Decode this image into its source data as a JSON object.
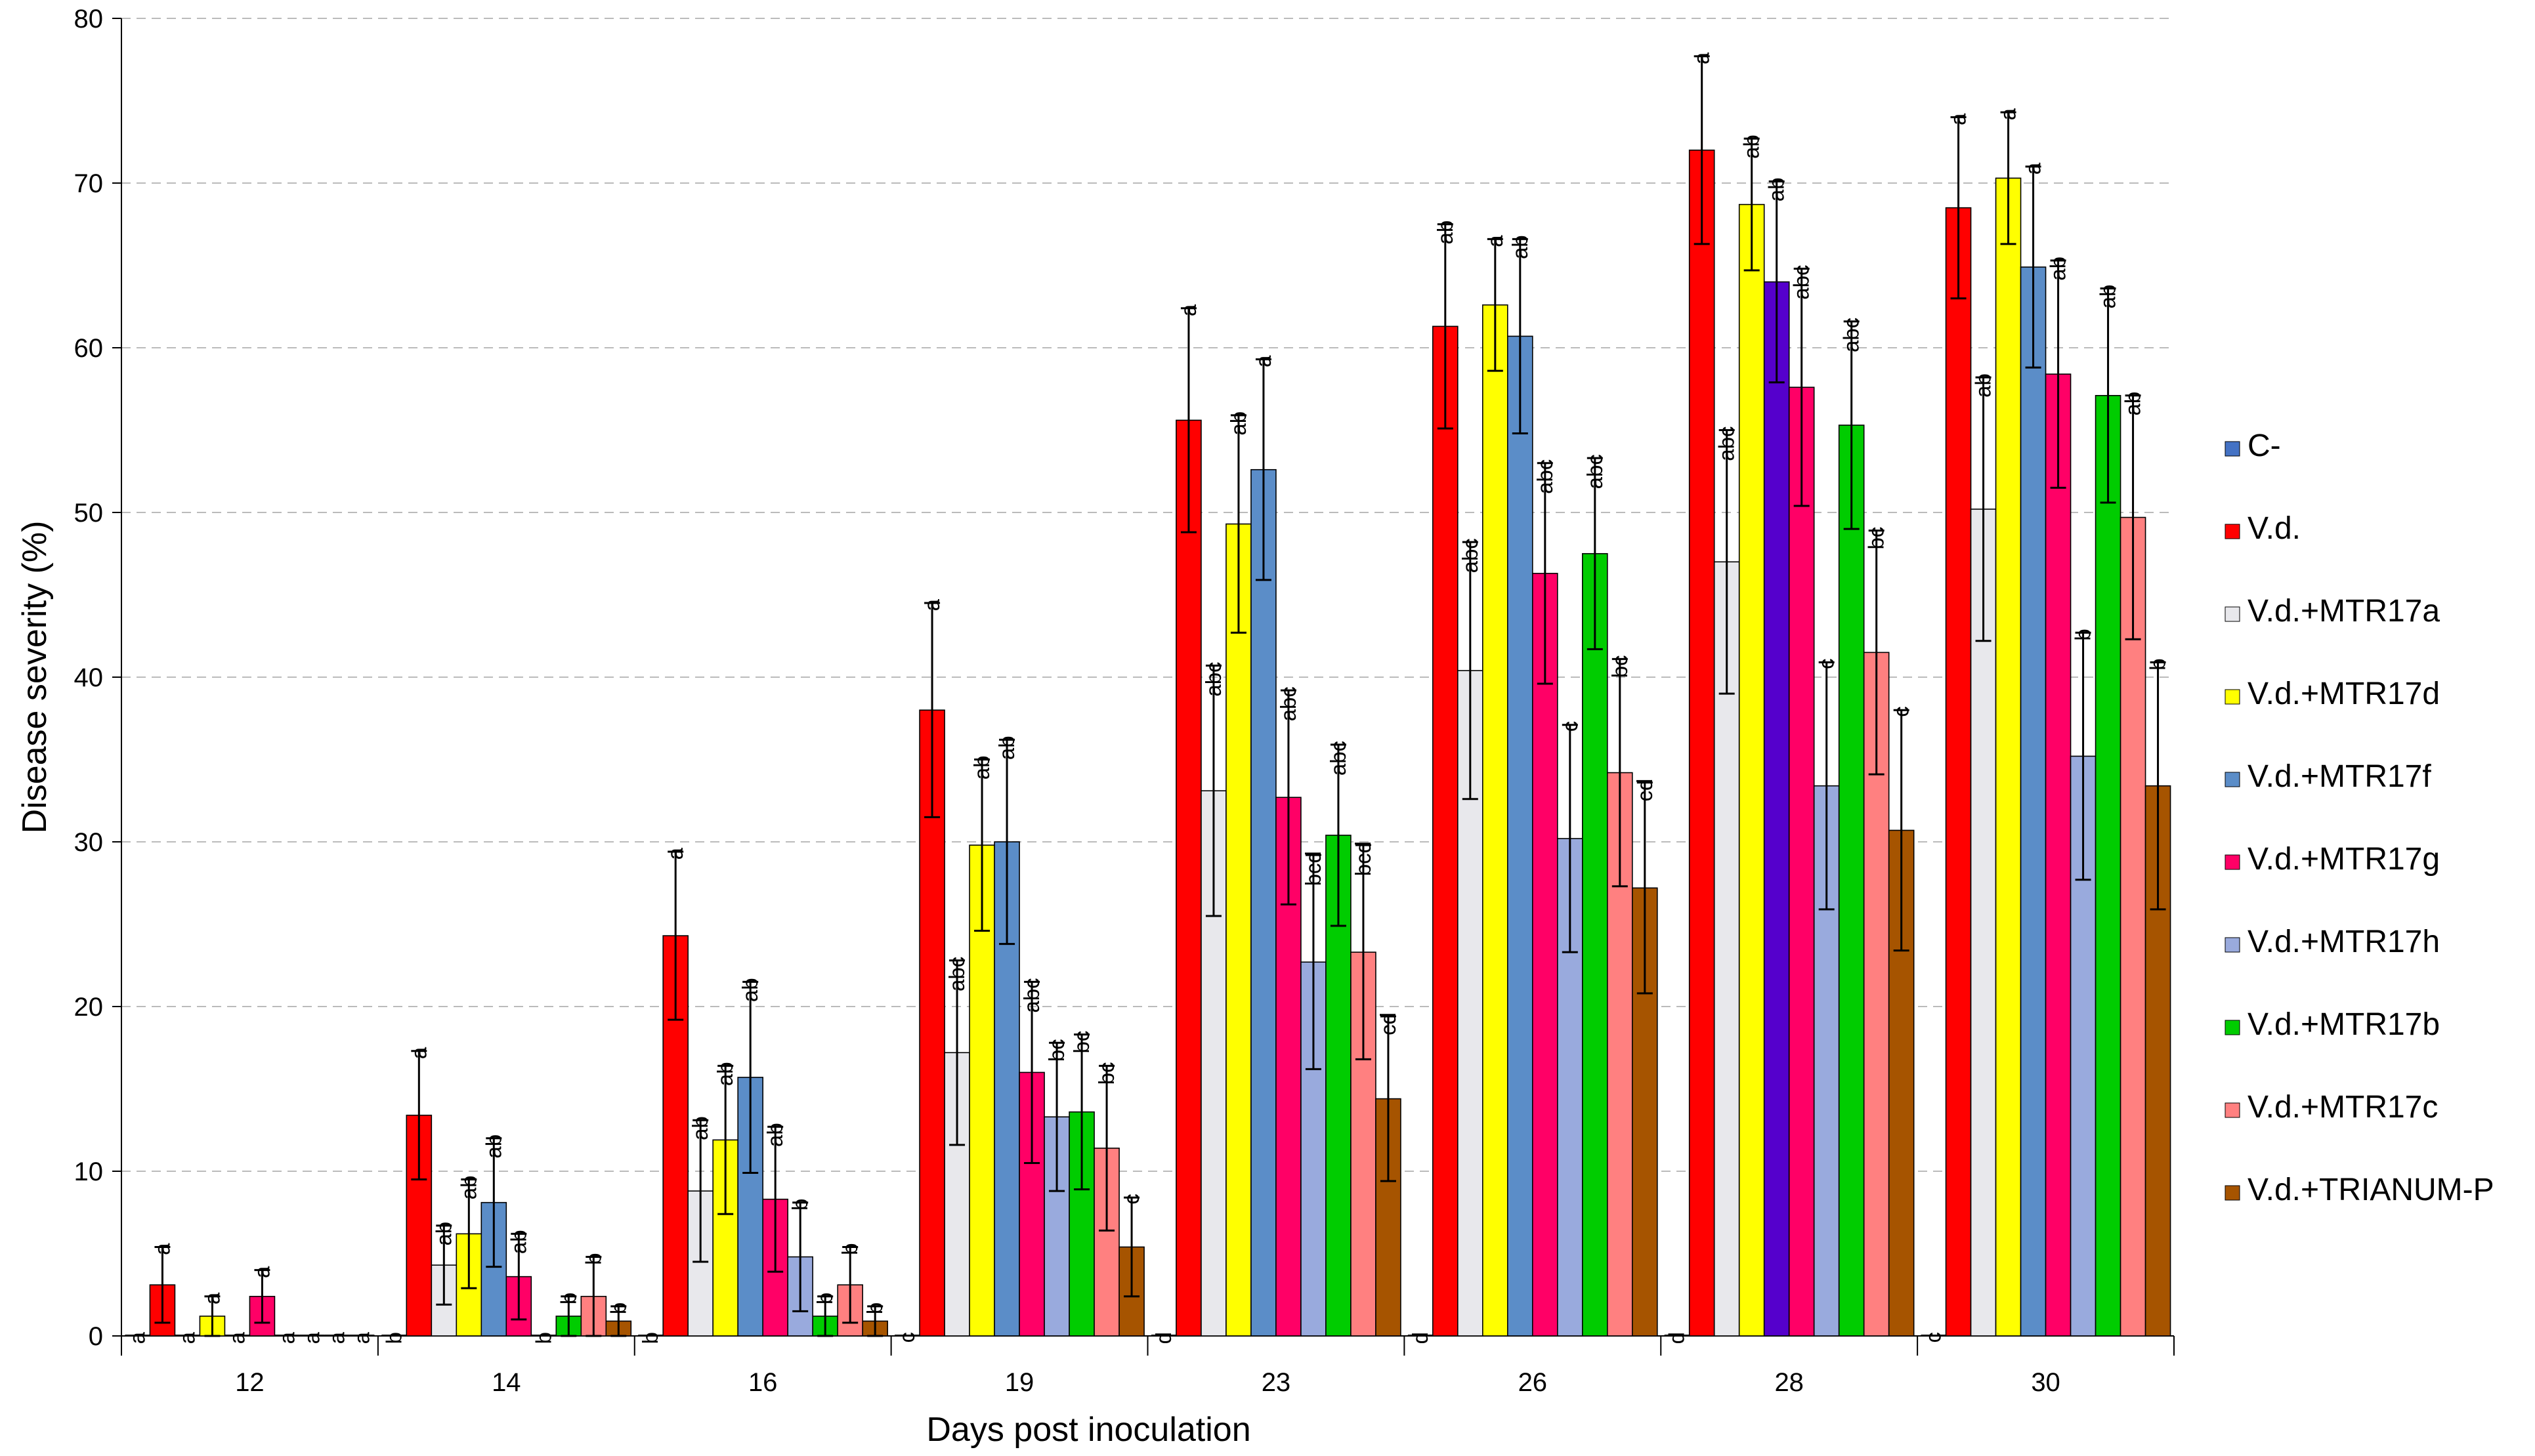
{
  "chart_data": {
    "type": "bar",
    "xlabel": "Days post inoculation",
    "ylabel": "Disease severity (%)",
    "ylim": [
      0,
      80
    ],
    "yticks": [
      0,
      10,
      20,
      30,
      40,
      50,
      60,
      70,
      80
    ],
    "grid": "horizontal dashed",
    "legend_position": "right",
    "categories": [
      "12",
      "14",
      "16",
      "19",
      "23",
      "26",
      "28",
      "30"
    ],
    "series": [
      {
        "name": "C-",
        "color": "#4472C4",
        "values": [
          0,
          0,
          0,
          0,
          0,
          0,
          0,
          0
        ],
        "errors": [
          0,
          0,
          0,
          0,
          0,
          0,
          0,
          0
        ],
        "letters": [
          "a",
          "b",
          "b",
          "c",
          "d",
          "d",
          "d",
          "c"
        ]
      },
      {
        "name": "V.d.",
        "color": "#FF0000",
        "values": [
          3.1,
          13.4,
          24.3,
          38.0,
          55.6,
          61.3,
          72.0,
          68.5
        ],
        "errors": [
          2.3,
          3.9,
          5.1,
          6.5,
          6.8,
          6.2,
          5.7,
          5.5
        ],
        "letters": [
          "a",
          "a",
          "a",
          "a",
          "a",
          "ab",
          "a",
          "a"
        ]
      },
      {
        "name": "V.d.+MTR17a",
        "color": "#E8E8EC",
        "values": [
          0,
          4.3,
          8.8,
          17.2,
          33.1,
          40.4,
          47.0,
          50.2
        ],
        "errors": [
          0,
          2.4,
          4.3,
          5.6,
          7.6,
          7.8,
          8.0,
          8.0
        ],
        "letters": [
          "a",
          "ab",
          "ab",
          "abc",
          "abc",
          "abc",
          "abc",
          "ab"
        ]
      },
      {
        "name": "V.d.+MTR17d",
        "color": "#FFFF00",
        "values": [
          1.2,
          6.2,
          11.9,
          29.8,
          49.3,
          62.6,
          68.7,
          70.3
        ],
        "errors": [
          1.2,
          3.3,
          4.5,
          5.2,
          6.6,
          4.0,
          4.0,
          4.0
        ],
        "letters": [
          "a",
          "ab",
          "ab",
          "ab",
          "ab",
          "a",
          "ab",
          "a"
        ]
      },
      {
        "name": "V.d.+MTR17f",
        "color": "#5B8DC8",
        "values": [
          0,
          8.1,
          15.7,
          30.0,
          52.6,
          60.7,
          64.0,
          64.9
        ],
        "errors": [
          0,
          3.9,
          5.8,
          6.2,
          6.7,
          5.9,
          6.1,
          6.1
        ],
        "letters": [
          "a",
          "ab",
          "ab",
          "ab",
          "a",
          "ab",
          "ab",
          "a"
        ]
      },
      {
        "name": "V.d.+MTR17g",
        "color": "#FF0066",
        "values": [
          2.4,
          3.6,
          8.3,
          16.0,
          32.7,
          46.3,
          57.6,
          58.4
        ],
        "errors": [
          1.6,
          2.6,
          4.4,
          5.5,
          6.5,
          6.7,
          7.2,
          6.9
        ],
        "letters": [
          "a",
          "ab",
          "ab",
          "abc",
          "abc",
          "abc",
          "abc",
          "ab"
        ]
      },
      {
        "name": "V.d.+MTR17h",
        "color": "#99AADD",
        "values": [
          0,
          0,
          4.8,
          13.3,
          22.7,
          30.2,
          33.4,
          35.2
        ],
        "errors": [
          0,
          0,
          3.3,
          4.5,
          6.5,
          6.9,
          7.5,
          7.5
        ],
        "letters": [
          "a",
          "b",
          "b",
          "bc",
          "bcd",
          "c",
          "c",
          "b"
        ]
      },
      {
        "name": "V.d.+MTR17b",
        "color": "#00CC00",
        "values": [
          0,
          1.2,
          1.2,
          13.6,
          30.4,
          47.5,
          55.3,
          57.1
        ],
        "errors": [
          0,
          1.2,
          1.2,
          4.7,
          5.5,
          5.8,
          6.3,
          6.5
        ],
        "letters": [
          "a",
          "b",
          "b",
          "bc",
          "abc",
          "abc",
          "abc",
          "ab"
        ]
      },
      {
        "name": "V.d.+MTR17c",
        "color": "#FF8080",
        "values": [
          0,
          2.4,
          3.1,
          11.4,
          23.3,
          34.2,
          41.5,
          49.7
        ],
        "errors": [
          0,
          2.4,
          2.3,
          5.0,
          6.5,
          6.9,
          7.4,
          7.4
        ],
        "letters": [
          "a",
          "b",
          "b",
          "bc",
          "bcd",
          "bc",
          "bc",
          "ab"
        ]
      },
      {
        "name": "V.d.+TRIANUM-P",
        "color": "#A65400",
        "values": [
          0,
          0.9,
          0.9,
          5.4,
          14.4,
          27.2,
          30.7,
          33.4
        ],
        "errors": [
          0,
          0.9,
          0.9,
          3.0,
          5.0,
          6.4,
          7.3,
          7.5
        ],
        "letters": [
          "a",
          "b",
          "b",
          "c",
          "cd",
          "cd",
          "c",
          "b"
        ]
      }
    ],
    "overrides": [
      {
        "series": 4,
        "category": 6,
        "color": "#5500CC"
      }
    ]
  }
}
